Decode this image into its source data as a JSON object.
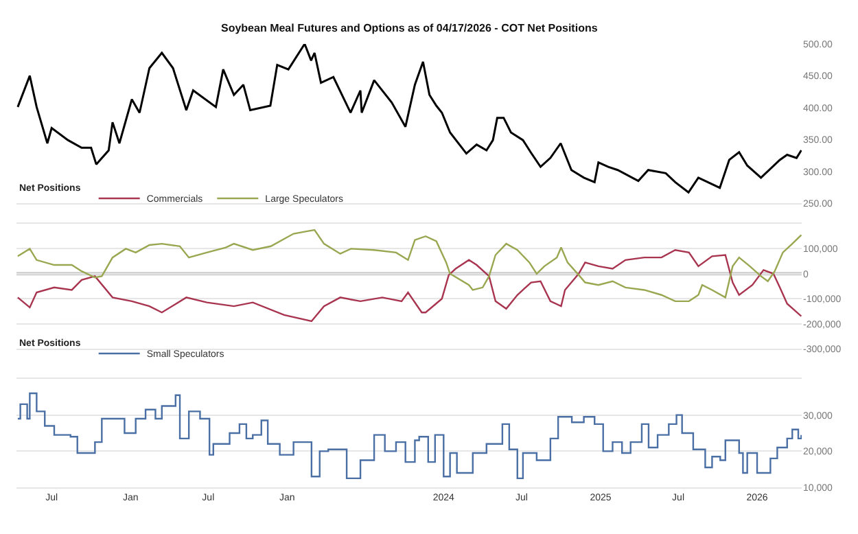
{
  "chart_data": [
    {
      "type": "line",
      "title": "Soybean Meal Futures and Options as of 04/17/2026 - COT Net Positions",
      "xlim": [
        "2021-04-10",
        "2026-04-15"
      ],
      "ylim": [
        250,
        500
      ],
      "yticks": [
        {
          "value": 250,
          "label": "250.00"
        },
        {
          "value": 300,
          "label": "300.00"
        },
        {
          "value": 350,
          "label": "350.00"
        },
        {
          "value": 400,
          "label": "400.00"
        },
        {
          "value": 450,
          "label": "450.00"
        },
        {
          "value": 500,
          "label": "500.00"
        }
      ],
      "grid": false,
      "tick_labels": "y",
      "series": [
        {
          "color": "#000000",
          "x": [
            "2021-04-13",
            "2021-05-11",
            "2021-05-27",
            "2021-06-21",
            "2021-07-01",
            "2021-08-08",
            "2021-09-09",
            "2021-10-01",
            "2021-10-13",
            "2021-11-11",
            "2021-11-20",
            "2021-12-06",
            "2022-01-04",
            "2022-01-22",
            "2022-02-14",
            "2022-03-15",
            "2022-04-10",
            "2022-05-11",
            "2022-05-27",
            "2022-07-19",
            "2022-08-05",
            "2022-08-30",
            "2022-09-21",
            "2022-10-07",
            "2022-11-23",
            "2022-12-09",
            "2023-01-04",
            "2023-02-11",
            "2023-02-26",
            "2023-03-06",
            "2023-03-21",
            "2023-04-19",
            "2023-05-29",
            "2023-06-21",
            "2023-06-24",
            "2023-07-23",
            "2023-09-02",
            "2023-10-04",
            "2023-10-26",
            "2023-11-14",
            "2023-11-29",
            "2023-12-15",
            "2023-12-28",
            "2024-01-16",
            "2024-02-23",
            "2024-03-18",
            "2024-04-10",
            "2024-04-25",
            "2024-05-05",
            "2024-05-20",
            "2024-06-06",
            "2024-07-04",
            "2024-07-22",
            "2024-08-14",
            "2024-09-06",
            "2024-09-30",
            "2024-10-25",
            "2024-11-23",
            "2024-12-18",
            "2024-12-27",
            "2025-01-19",
            "2025-02-10",
            "2025-03-30",
            "2025-04-22",
            "2025-06-02",
            "2025-06-24",
            "2025-07-25",
            "2025-08-17",
            "2025-10-06",
            "2025-10-28",
            "2025-11-20",
            "2025-12-09",
            "2026-01-10",
            "2026-02-23",
            "2026-03-12",
            "2026-04-03",
            "2026-04-14"
          ],
          "values": [
            401,
            450,
            401,
            344,
            368,
            349,
            337,
            337,
            311,
            333,
            377,
            344,
            413,
            392,
            462,
            486,
            462,
            396,
            427,
            401,
            460,
            420,
            436,
            396,
            403,
            467,
            460,
            500,
            474,
            486,
            439,
            448,
            392,
            427,
            392,
            443,
            408,
            370,
            436,
            472,
            420,
            403,
            392,
            361,
            328,
            342,
            333,
            349,
            384,
            384,
            361,
            349,
            330,
            307,
            321,
            344,
            302,
            290,
            283,
            314,
            307,
            302,
            285,
            302,
            297,
            283,
            267,
            290,
            274,
            318,
            330,
            309,
            290,
            318,
            326,
            321,
            333
          ]
        }
      ]
    },
    {
      "type": "line",
      "legend_title": "Net Positions",
      "legend": "top left",
      "xlim": [
        "2021-04-10",
        "2026-04-15"
      ],
      "ylim": [
        -300000,
        200000
      ],
      "yticks": [
        {
          "value": -300000,
          "label": "-300,000"
        },
        {
          "value": -200000,
          "label": "-200,000"
        },
        {
          "value": -100000,
          "label": "-100,000"
        },
        0,
        {
          "value": 100000,
          "label": "100,000"
        },
        {
          "value": 200000,
          "label": null
        }
      ],
      "grid": "y",
      "tick_labels": "y",
      "ref_lines": [
        {
          "axis": "y",
          "value": 0,
          "color": "#cccccc"
        }
      ],
      "series": [
        {
          "name": "Commercials",
          "color": "#a8344f",
          "x": [
            "2021-04-13",
            "2021-05-11",
            "2021-05-27",
            "2021-07-07",
            "2021-08-17",
            "2021-09-09",
            "2021-10-10",
            "2021-11-20",
            "2022-01-04",
            "2022-02-14",
            "2022-03-15",
            "2022-05-11",
            "2022-06-28",
            "2022-08-30",
            "2022-10-13",
            "2022-12-25",
            "2023-02-27",
            "2023-03-28",
            "2023-05-05",
            "2023-06-21",
            "2023-08-11",
            "2023-09-25",
            "2023-10-10",
            "2023-11-11",
            "2023-11-20",
            "2023-12-28",
            "2024-01-13",
            "2024-01-29",
            "2024-02-29",
            "2024-03-18",
            "2024-04-16",
            "2024-05-01",
            "2024-05-26",
            "2024-06-21",
            "2024-07-23",
            "2024-08-14",
            "2024-09-06",
            "2024-10-01",
            "2024-10-10",
            "2024-11-11",
            "2024-11-26",
            "2024-12-27",
            "2025-01-29",
            "2025-02-28",
            "2025-04-13",
            "2025-05-23",
            "2025-06-24",
            "2025-07-26",
            "2025-08-17",
            "2025-09-18",
            "2025-10-19",
            "2025-11-05",
            "2025-11-20",
            "2025-12-21",
            "2026-01-16",
            "2026-02-08",
            "2026-02-23",
            "2026-03-12",
            "2026-04-14"
          ],
          "values": [
            -95000,
            -135000,
            -75000,
            -55000,
            -65000,
            -25000,
            -10000,
            -95000,
            -110000,
            -130000,
            -155000,
            -95000,
            -115000,
            -130000,
            -115000,
            -165000,
            -190000,
            -130000,
            -95000,
            -110000,
            -95000,
            -110000,
            -75000,
            -155000,
            -155000,
            -100000,
            -5000,
            20000,
            55000,
            35000,
            -10000,
            -110000,
            -140000,
            -85000,
            -35000,
            -30000,
            -110000,
            -130000,
            -65000,
            0,
            45000,
            30000,
            20000,
            55000,
            65000,
            65000,
            95000,
            85000,
            30000,
            70000,
            75000,
            -35000,
            -85000,
            -45000,
            15000,
            0,
            -55000,
            -120000,
            -170000
          ]
        },
        {
          "name": "Large Speculators",
          "color": "#9aa650",
          "x": [
            "2021-04-13",
            "2021-05-11",
            "2021-05-27",
            "2021-07-07",
            "2021-08-17",
            "2021-09-09",
            "2021-10-10",
            "2021-10-26",
            "2021-11-20",
            "2021-12-21",
            "2022-01-13",
            "2022-02-14",
            "2022-03-15",
            "2022-04-26",
            "2022-05-17",
            "2022-06-28",
            "2022-08-11",
            "2022-08-30",
            "2022-10-13",
            "2022-11-24",
            "2023-01-16",
            "2023-02-17",
            "2023-03-06",
            "2023-03-28",
            "2023-05-05",
            "2023-05-30",
            "2023-07-23",
            "2023-09-12",
            "2023-10-10",
            "2023-10-26",
            "2023-11-20",
            "2023-12-15",
            "2024-01-07",
            "2024-01-16",
            "2024-02-29",
            "2024-03-09",
            "2024-04-01",
            "2024-04-16",
            "2024-05-01",
            "2024-05-26",
            "2024-06-21",
            "2024-07-19",
            "2024-08-05",
            "2024-08-23",
            "2024-09-21",
            "2024-10-01",
            "2024-10-16",
            "2024-11-11",
            "2024-11-26",
            "2024-12-27",
            "2025-01-29",
            "2025-02-28",
            "2025-04-13",
            "2025-05-23",
            "2025-06-24",
            "2025-07-26",
            "2025-08-17",
            "2025-08-26",
            "2025-09-18",
            "2025-10-19",
            "2025-11-05",
            "2025-11-20",
            "2025-12-15",
            "2026-01-10",
            "2026-01-26",
            "2026-02-11",
            "2026-03-02",
            "2026-03-24",
            "2026-04-14"
          ],
          "values": [
            70000,
            100000,
            55000,
            35000,
            35000,
            10000,
            -15000,
            -10000,
            65000,
            100000,
            85000,
            115000,
            120000,
            110000,
            65000,
            85000,
            105000,
            120000,
            95000,
            110000,
            160000,
            170000,
            175000,
            120000,
            80000,
            100000,
            95000,
            85000,
            55000,
            135000,
            150000,
            130000,
            45000,
            0,
            -45000,
            -65000,
            -55000,
            -10000,
            75000,
            120000,
            95000,
            45000,
            0,
            30000,
            65000,
            105000,
            45000,
            -5000,
            -35000,
            -45000,
            -30000,
            -55000,
            -65000,
            -85000,
            -110000,
            -110000,
            -85000,
            -45000,
            -65000,
            -95000,
            30000,
            65000,
            30000,
            -10000,
            -30000,
            10000,
            85000,
            120000,
            155000
          ]
        }
      ]
    },
    {
      "type": "step",
      "legend_title": "Net Positions",
      "legend": "top left",
      "xlim": [
        "2021-04-10",
        "2026-04-15"
      ],
      "ylim": [
        10000,
        40000
      ],
      "xticks": [
        {
          "value": "2021-07-01",
          "label": "Jul"
        },
        {
          "value": "2022-01-01",
          "label": "Jan"
        },
        {
          "value": "2022-07-01",
          "label": "Jul"
        },
        {
          "value": "2023-01-01",
          "label": "Jan"
        },
        {
          "value": "2024-01-01",
          "label": "2024"
        },
        {
          "value": "2024-07-01",
          "label": "Jul"
        },
        {
          "value": "2025-01-01",
          "label": "2025"
        },
        {
          "value": "2025-07-01",
          "label": "Jul"
        },
        {
          "value": "2026-01-01",
          "label": "2026"
        }
      ],
      "yticks": [
        {
          "value": 10000,
          "label": "10,000"
        },
        {
          "value": 20000,
          "label": "20,000"
        },
        {
          "value": 30000,
          "label": "30,000"
        },
        {
          "value": 40000,
          "label": null
        }
      ],
      "grid": "y",
      "series": [
        {
          "name": "Small Speculators",
          "color": "#4a6fa5",
          "x": [
            "2021-04-13",
            "2021-04-19",
            "2021-05-05",
            "2021-05-11",
            "2021-05-27",
            "2021-06-15",
            "2021-07-07",
            "2021-08-14",
            "2021-08-30",
            "2021-10-01",
            "2021-10-10",
            "2021-10-26",
            "2021-12-03",
            "2021-12-18",
            "2022-01-13",
            "2022-02-05",
            "2022-02-28",
            "2022-03-15",
            "2022-04-16",
            "2022-04-26",
            "2022-05-17",
            "2022-06-12",
            "2022-07-04",
            "2022-07-13",
            "2022-08-20",
            "2022-09-12",
            "2022-09-28",
            "2022-10-13",
            "2022-11-02",
            "2022-11-17",
            "2022-12-15",
            "2023-01-16",
            "2023-02-27",
            "2023-03-18",
            "2023-04-07",
            "2023-05-20",
            "2023-06-21",
            "2023-07-23",
            "2023-08-17",
            "2023-09-12",
            "2023-10-04",
            "2023-10-26",
            "2023-11-05",
            "2023-11-26",
            "2023-12-12",
            "2024-01-01",
            "2024-01-16",
            "2024-02-01",
            "2024-03-09",
            "2024-04-10",
            "2024-05-17",
            "2024-06-02",
            "2024-06-21",
            "2024-07-04",
            "2024-08-05",
            "2024-09-06",
            "2024-09-24",
            "2024-10-26",
            "2024-11-23",
            "2024-12-18",
            "2025-01-07",
            "2025-01-29",
            "2025-02-20",
            "2025-03-12",
            "2025-04-07",
            "2025-04-23",
            "2025-05-14",
            "2025-06-09",
            "2025-06-27",
            "2025-07-10",
            "2025-08-05",
            "2025-09-02",
            "2025-09-18",
            "2025-10-07",
            "2025-10-19",
            "2025-11-20",
            "2025-11-29",
            "2025-12-09",
            "2026-01-01",
            "2026-02-01",
            "2026-02-17",
            "2026-03-12",
            "2026-03-24",
            "2026-04-07",
            "2026-04-14"
          ],
          "values": [
            29000,
            33000,
            29000,
            36000,
            31000,
            27000,
            24500,
            24000,
            19500,
            19500,
            22500,
            29000,
            29000,
            25000,
            29000,
            31500,
            29000,
            32500,
            35500,
            23500,
            31000,
            29000,
            19000,
            22000,
            25000,
            27500,
            23500,
            24500,
            28500,
            22000,
            19000,
            22500,
            13000,
            20000,
            20500,
            12500,
            17500,
            24500,
            20000,
            22500,
            17000,
            23000,
            24000,
            17000,
            24500,
            13000,
            19500,
            14000,
            19500,
            22000,
            27500,
            20500,
            12500,
            19500,
            17500,
            23500,
            29500,
            28000,
            29500,
            27500,
            20000,
            22500,
            19500,
            22500,
            27500,
            21000,
            24500,
            27500,
            30000,
            25000,
            20500,
            15500,
            18500,
            17500,
            23000,
            19500,
            14000,
            19500,
            14000,
            18000,
            21000,
            23500,
            26000,
            23500,
            24500
          ]
        }
      ]
    }
  ]
}
